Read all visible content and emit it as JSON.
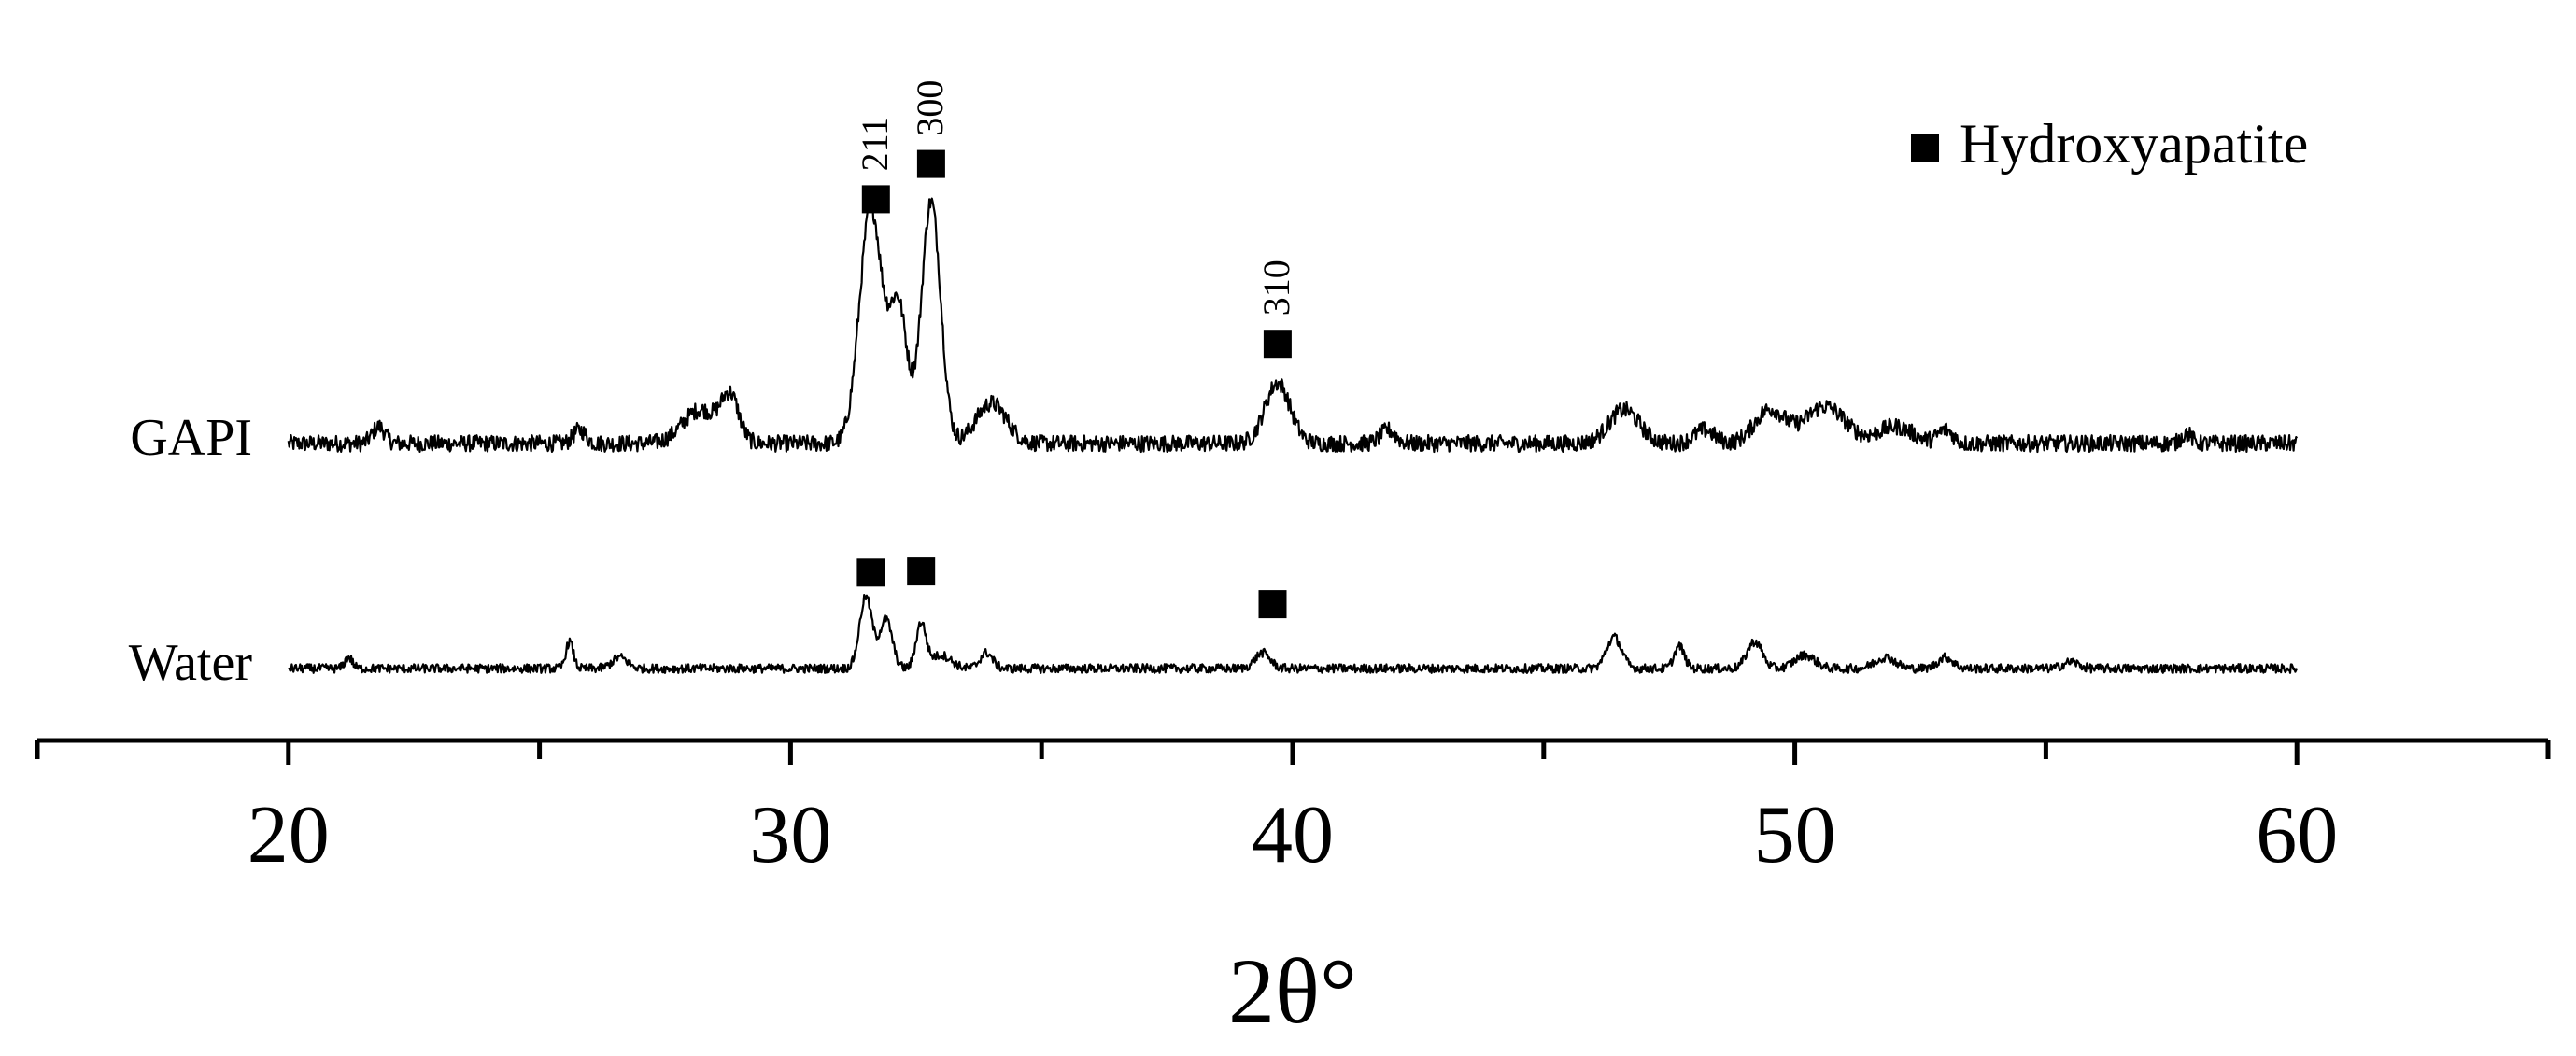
{
  "chart_data": {
    "type": "line",
    "title": "",
    "xlabel": "2θ°",
    "ylabel": "",
    "xlim": [
      15,
      65
    ],
    "x_ticks": [
      20,
      30,
      40,
      50,
      60
    ],
    "x_minor_ticks": [
      15,
      25,
      35,
      45,
      55,
      65
    ],
    "y_axis_shown": false,
    "grid": false,
    "legend": {
      "position": "top-right",
      "entries": [
        {
          "marker": "filled-square",
          "label": "Hydroxyapatite"
        }
      ]
    },
    "colors": {
      "line": "#000000",
      "marker": "#000000",
      "background": "#ffffff"
    },
    "series": [
      {
        "name": "GAPI",
        "x_range": [
          20,
          60
        ],
        "baseline": 0.0,
        "noise": 0.05,
        "peaks": [
          {
            "x": 21.8,
            "height": 0.05,
            "width": 0.25
          },
          {
            "x": 25.8,
            "height": 0.04,
            "width": 0.25
          },
          {
            "x": 28.2,
            "height": 0.1,
            "width": 0.7
          },
          {
            "x": 28.8,
            "height": 0.13,
            "width": 0.35
          },
          {
            "x": 31.6,
            "height": 0.7,
            "width": 0.45
          },
          {
            "x": 32.15,
            "height": 0.4,
            "width": 0.35
          },
          {
            "x": 32.8,
            "height": 0.72,
            "width": 0.38
          },
          {
            "x": 34.0,
            "height": 0.12,
            "width": 0.6
          },
          {
            "x": 39.7,
            "height": 0.18,
            "width": 0.5
          },
          {
            "x": 41.9,
            "height": 0.04,
            "width": 0.3
          },
          {
            "x": 46.6,
            "height": 0.1,
            "width": 0.6
          },
          {
            "x": 48.2,
            "height": 0.04,
            "width": 0.4
          },
          {
            "x": 49.5,
            "height": 0.1,
            "width": 0.6
          },
          {
            "x": 50.6,
            "height": 0.11,
            "width": 0.8
          },
          {
            "x": 52.0,
            "height": 0.05,
            "width": 0.7
          },
          {
            "x": 53.0,
            "height": 0.04,
            "width": 0.3
          },
          {
            "x": 57.8,
            "height": 0.03,
            "width": 0.2
          }
        ]
      },
      {
        "name": "Water",
        "x_range": [
          20,
          60
        ],
        "baseline": 0.0,
        "noise": 0.04,
        "peaks": [
          {
            "x": 21.2,
            "height": 0.05,
            "width": 0.15
          },
          {
            "x": 25.6,
            "height": 0.12,
            "width": 0.15
          },
          {
            "x": 26.6,
            "height": 0.05,
            "width": 0.3
          },
          {
            "x": 31.5,
            "height": 0.32,
            "width": 0.25
          },
          {
            "x": 31.9,
            "height": 0.22,
            "width": 0.25
          },
          {
            "x": 32.6,
            "height": 0.2,
            "width": 0.2
          },
          {
            "x": 33.0,
            "height": 0.06,
            "width": 0.4
          },
          {
            "x": 33.9,
            "height": 0.07,
            "width": 0.25
          },
          {
            "x": 39.4,
            "height": 0.07,
            "width": 0.3
          },
          {
            "x": 46.4,
            "height": 0.14,
            "width": 0.3
          },
          {
            "x": 47.7,
            "height": 0.1,
            "width": 0.2
          },
          {
            "x": 49.2,
            "height": 0.12,
            "width": 0.3
          },
          {
            "x": 50.2,
            "height": 0.06,
            "width": 0.4
          },
          {
            "x": 51.8,
            "height": 0.05,
            "width": 0.4
          },
          {
            "x": 53.0,
            "height": 0.05,
            "width": 0.3
          },
          {
            "x": 55.5,
            "height": 0.03,
            "width": 0.3
          }
        ]
      }
    ],
    "series_labels": [
      "GAPI",
      "Water"
    ],
    "annotations": [
      {
        "series": "GAPI",
        "x": 31.7,
        "marker": "filled-square",
        "label": "211"
      },
      {
        "series": "GAPI",
        "x": 32.8,
        "marker": "filled-square",
        "label": "300"
      },
      {
        "series": "GAPI",
        "x": 39.7,
        "marker": "filled-square",
        "label": "310"
      },
      {
        "series": "Water",
        "x": 31.6,
        "marker": "filled-square",
        "label": ""
      },
      {
        "series": "Water",
        "x": 32.6,
        "marker": "filled-square",
        "label": ""
      },
      {
        "series": "Water",
        "x": 39.6,
        "marker": "filled-square",
        "label": ""
      }
    ]
  }
}
